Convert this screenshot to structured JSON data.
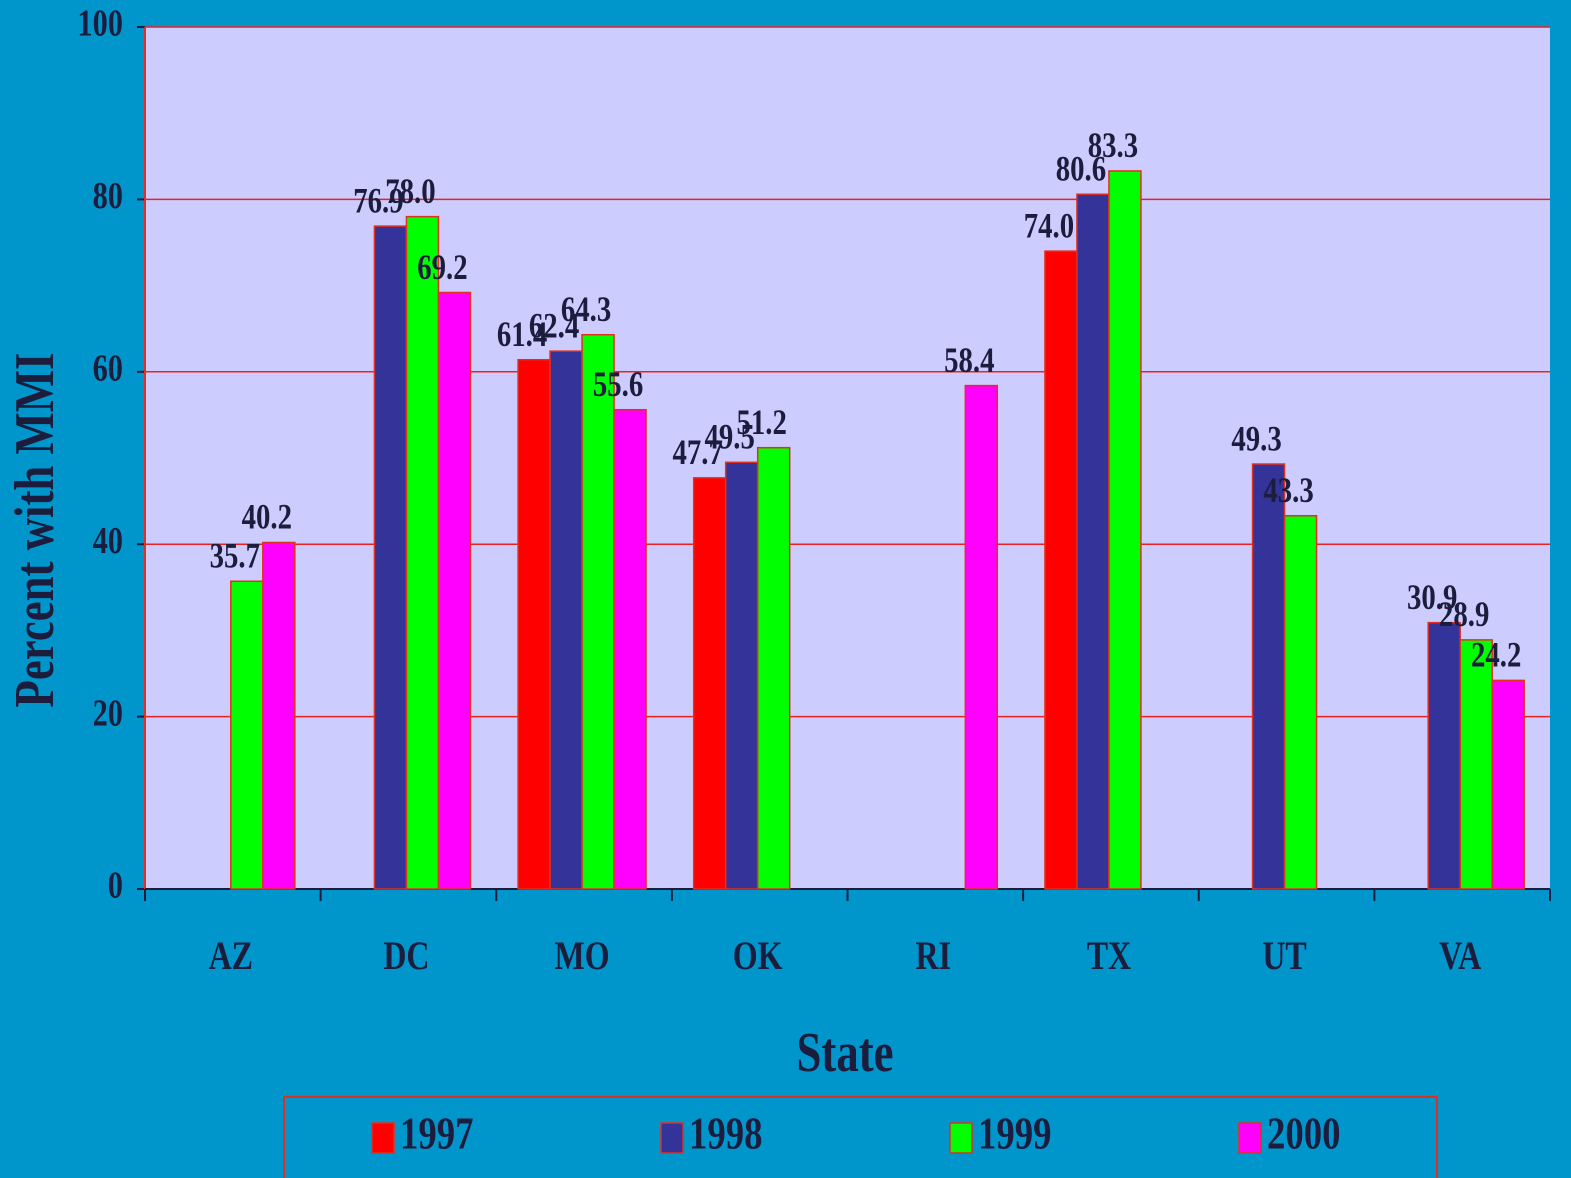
{
  "chart_data": {
    "type": "bar",
    "x_label": "State",
    "y_label": "Percent with MMI",
    "categories": [
      "AZ",
      "DC",
      "MO",
      "OK",
      "RI",
      "TX",
      "UT",
      "VA"
    ],
    "series": [
      {
        "name": "1997",
        "color": "#ff0000",
        "values": [
          null,
          null,
          61.4,
          47.7,
          null,
          74.0,
          null,
          null
        ],
        "value_labels": [
          null,
          null,
          "61.4",
          "47.7",
          null,
          "74.0",
          null,
          null
        ]
      },
      {
        "name": "1998",
        "color": "#333399",
        "values": [
          null,
          76.9,
          62.4,
          49.5,
          null,
          80.6,
          49.3,
          30.9
        ],
        "value_labels": [
          null,
          "76.9",
          "62.4",
          "49.5",
          null,
          "80.6",
          "49.3",
          "30.9"
        ]
      },
      {
        "name": "1999",
        "color": "#00ff00",
        "values": [
          35.7,
          78.0,
          64.3,
          51.2,
          null,
          83.3,
          43.3,
          28.9
        ],
        "value_labels": [
          "35.7",
          "78.0",
          "64.3",
          "51.2",
          null,
          "83.3",
          "43.3",
          "28.9"
        ]
      },
      {
        "name": "2000",
        "color": "#ff00ff",
        "values": [
          40.2,
          69.2,
          55.6,
          null,
          58.4,
          null,
          null,
          24.2
        ],
        "value_labels": [
          "40.2",
          "69.2",
          "55.6",
          null,
          "58.4",
          null,
          null,
          "24.2"
        ]
      }
    ],
    "ylim": [
      0,
      100
    ],
    "yticks": [
      0,
      20,
      40,
      60,
      80,
      100
    ],
    "grid": true,
    "legend": "bottom"
  }
}
